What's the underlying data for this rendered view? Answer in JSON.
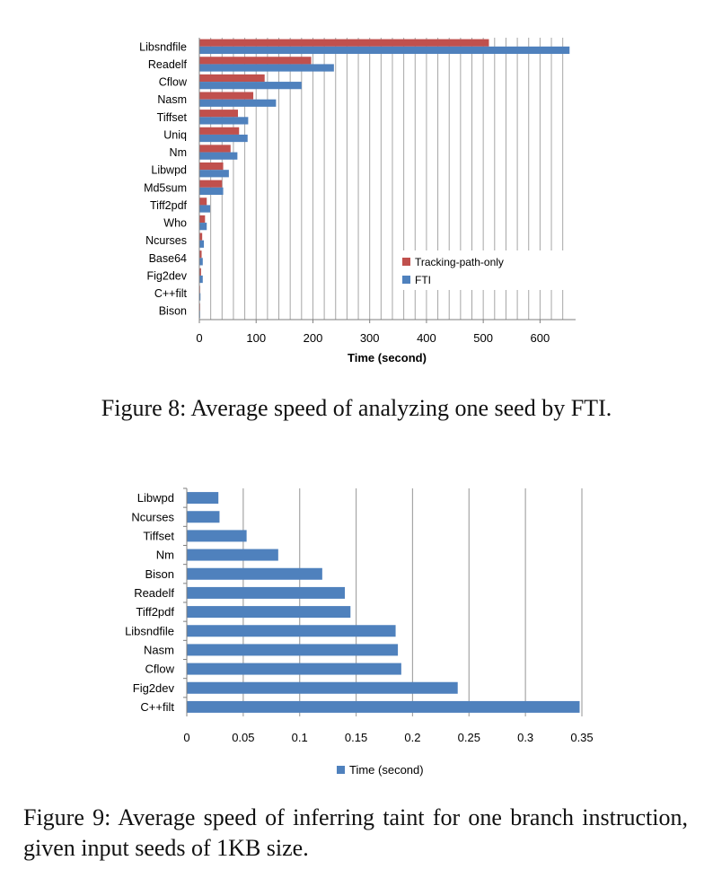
{
  "captions": {
    "fig8": "Figure 8: Average speed of analyzing one seed by FTI.",
    "fig9": "Figure 9: Average speed of inferring taint for one branch instruction, given input seeds of 1KB size."
  },
  "colors": {
    "tracking": "#c0504d",
    "fti": "#4f81bd",
    "time": "#4f81bd",
    "grid": "#a6a6a6"
  },
  "chart_data": [
    {
      "type": "bar",
      "orientation": "horizontal",
      "categories": [
        "Libsndfile",
        "Readelf",
        "Cflow",
        "Nasm",
        "Tiffset",
        "Uniq",
        "Nm",
        "Libwpd",
        "Md5sum",
        "Tiff2pdf",
        "Who",
        "Ncurses",
        "Base64",
        "Fig2dev",
        "C++filt",
        "Bison"
      ],
      "series": [
        {
          "name": "Tracking-path-only",
          "values": [
            510,
            197,
            115,
            95,
            68,
            70,
            55,
            42,
            40,
            13,
            10,
            5,
            4,
            3,
            1,
            0.5
          ]
        },
        {
          "name": "FTI",
          "values": [
            652,
            237,
            180,
            135,
            86,
            85,
            67,
            52,
            42,
            19,
            13,
            8,
            6,
            6,
            2,
            1
          ]
        }
      ],
      "xlabel": "Time (second)",
      "xticks": [
        "0",
        "100",
        "200",
        "300",
        "400",
        "500",
        "600"
      ],
      "xlim": [
        0,
        660
      ],
      "grid": true,
      "legend": "bottom-right inside"
    },
    {
      "type": "bar",
      "orientation": "horizontal",
      "categories": [
        "Libwpd",
        "Ncurses",
        "Tiffset",
        "Nm",
        "Bison",
        "Readelf",
        "Tiff2pdf",
        "Libsndfile",
        "Nasm",
        "Cflow",
        "Fig2dev",
        "C++filt"
      ],
      "series": [
        {
          "name": "Time (second)",
          "values": [
            0.028,
            0.029,
            0.053,
            0.081,
            0.12,
            0.14,
            0.145,
            0.185,
            0.187,
            0.19,
            0.24,
            0.348
          ]
        }
      ],
      "xticks": [
        "0",
        "0.05",
        "0.1",
        "0.15",
        "0.2",
        "0.25",
        "0.3",
        "0.35"
      ],
      "xlim": [
        0,
        0.35
      ],
      "grid": true,
      "legend": "bottom"
    }
  ]
}
